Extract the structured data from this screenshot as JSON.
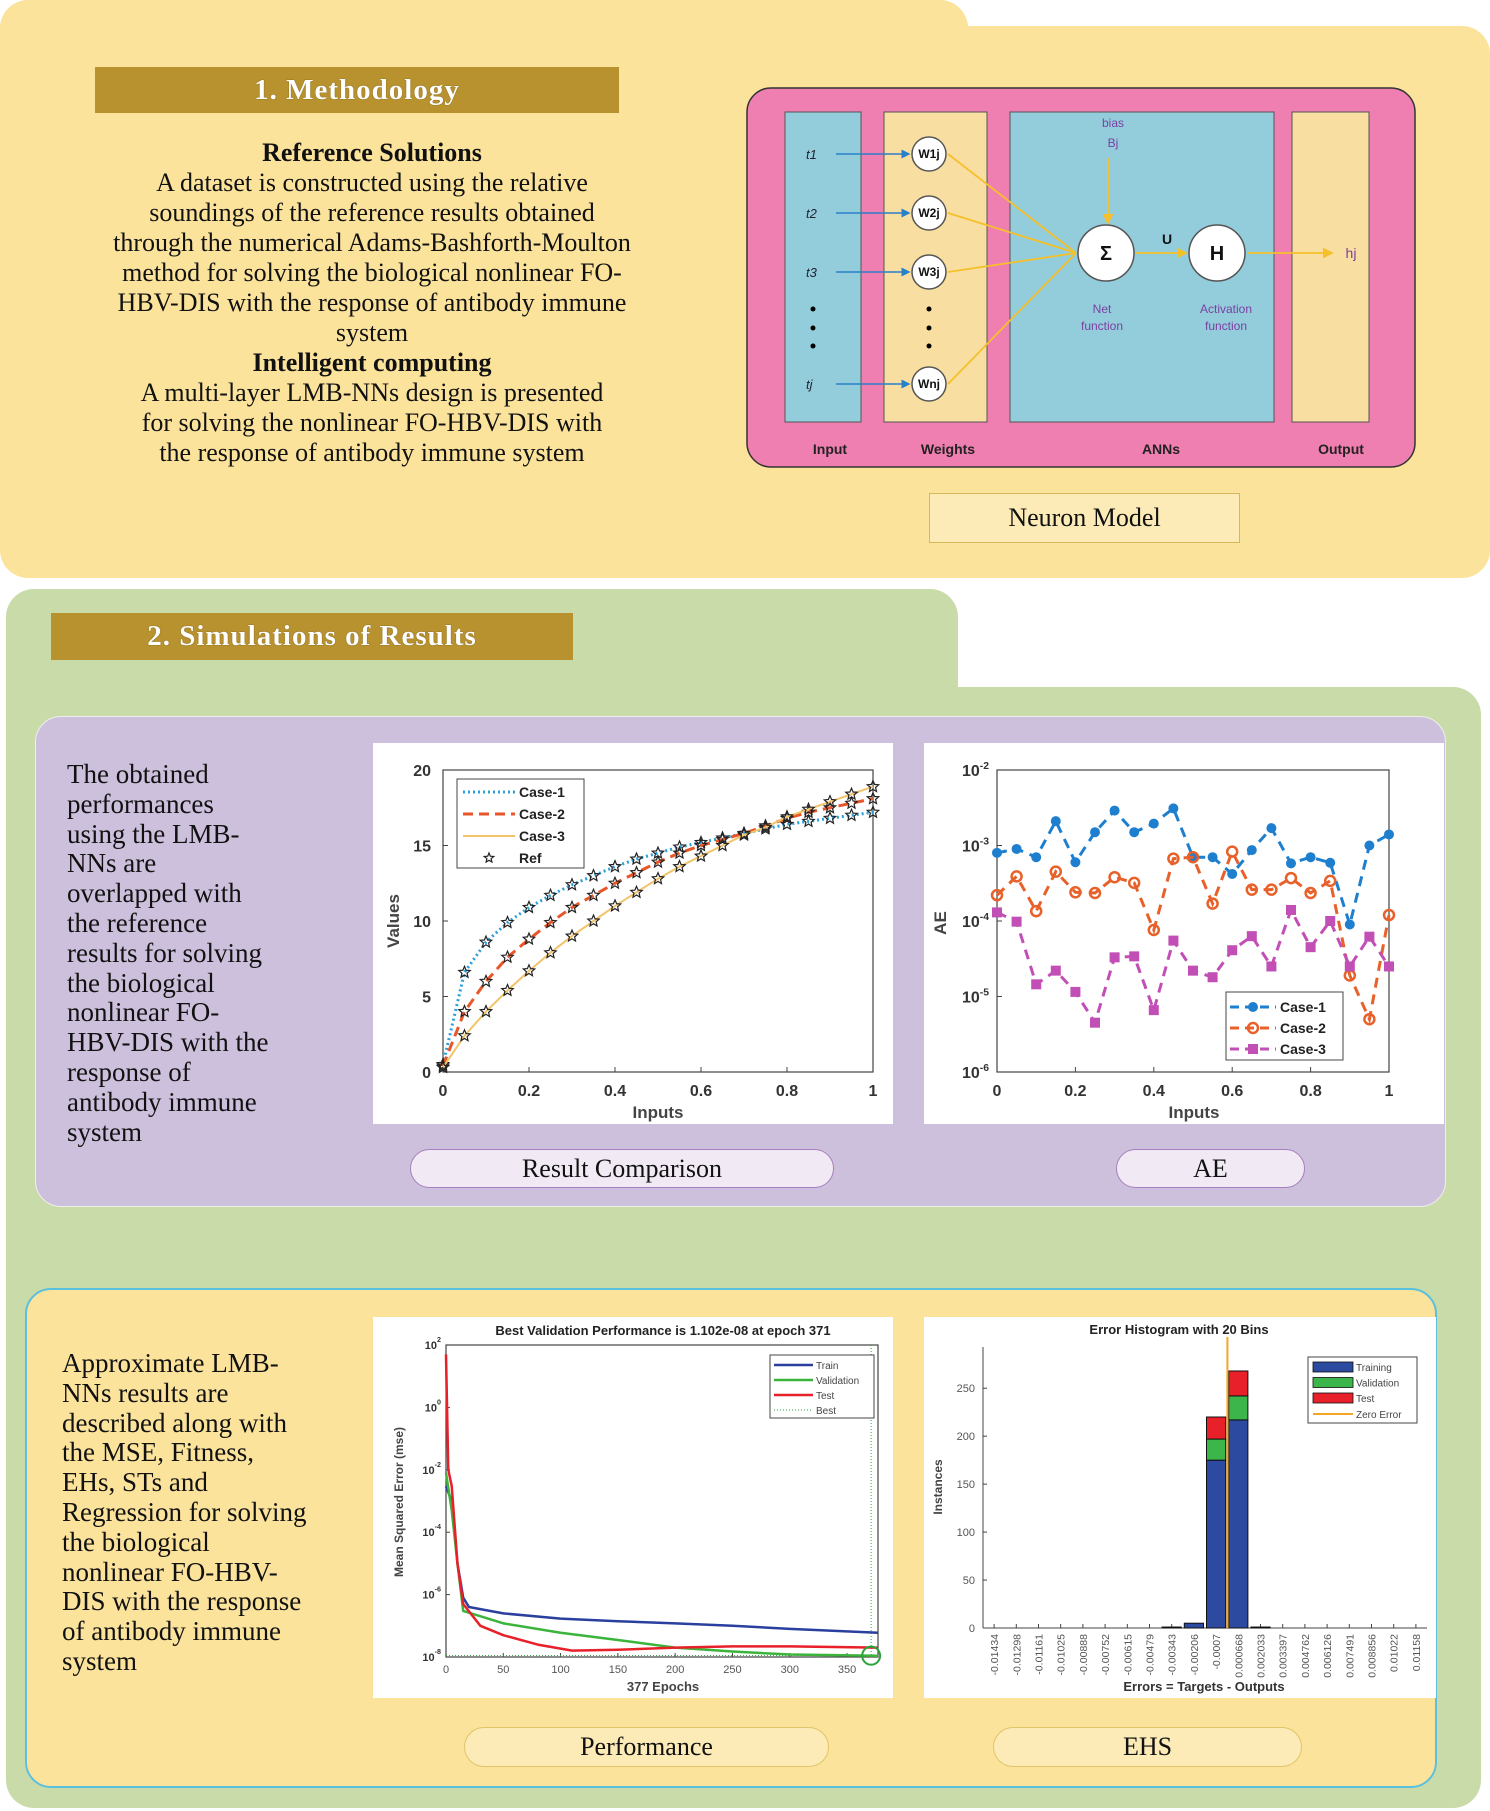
{
  "methodology": {
    "title": "1. Methodology",
    "ref_heading": "Reference Solutions",
    "ref_lines": [
      "A dataset is constructed using the relative",
      "soundings of the reference results obtained",
      "through the numerical Adams-Bashforth-Moulton",
      "method for solving the biological nonlinear FO-",
      "HBV-DIS with the response of antibody immune",
      "system"
    ],
    "ic_heading": "Intelligent computing",
    "ic_lines": [
      "A multi-layer LMB-NNs design is presented",
      "for solving the nonlinear FO-HBV-DIS with",
      "the response  of antibody immune system"
    ],
    "neuron": {
      "caption": "Neuron Model",
      "columns": {
        "input": "Input",
        "weights": "Weights",
        "anns": "ANNs",
        "output": "Output"
      },
      "inputs": [
        "t1",
        "t2",
        "t3",
        "tj"
      ],
      "weights": [
        "W1j",
        "W2j",
        "W3j",
        "Wnj"
      ],
      "bias": "bias",
      "bias_symbol": "Bj",
      "sum_symbol": "Σ",
      "act_symbol": "H",
      "u_label": "U",
      "output_symbol": "hj",
      "net_function": [
        "Net",
        "function"
      ],
      "activation_function": [
        "Activation",
        "function"
      ],
      "colors": {
        "frame": "#ef7fb0",
        "cyan": "#93cddc",
        "tan": "#f8dea0",
        "purple": "#7b3fa0",
        "yellow": "#f5c02a",
        "blue": "#2a7fc9"
      }
    }
  },
  "simulations": {
    "title": "2. Simulations of Results",
    "panel1_lines": [
      "The obtained",
      "performances",
      "using the LMB-",
      "NNs are",
      "overlapped with",
      "the reference",
      "results for solving",
      "the biological",
      "nonlinear FO-",
      "HBV-DIS with the",
      "response of",
      "antibody immune",
      "system"
    ],
    "panel2_lines": [
      "Approximate LMB-",
      "NNs results are",
      "described along with",
      "the MSE, Fitness,",
      "EHs, STs and",
      "Regression for solving",
      "the biological",
      "nonlinear FO-HBV-",
      "DIS with the response",
      "of antibody immune",
      "system"
    ],
    "captions": {
      "result": "Result Comparison",
      "ae": "AE",
      "performance": "Performance",
      "ehs": "EHS"
    }
  },
  "chart_data": [
    {
      "type": "line",
      "title": "",
      "xlabel": "Inputs",
      "ylabel": "Values",
      "xlim": [
        0,
        1
      ],
      "ylim": [
        0,
        20
      ],
      "xticks": [
        "0",
        "0.2",
        "0.4",
        "0.6",
        "0.8",
        "1"
      ],
      "yticks": [
        "0",
        "5",
        "10",
        "15",
        "20"
      ],
      "legend_position": "top-left",
      "x": [
        0,
        0.05,
        0.1,
        0.15,
        0.2,
        0.25,
        0.3,
        0.35,
        0.4,
        0.45,
        0.5,
        0.55,
        0.6,
        0.65,
        0.7,
        0.75,
        0.8,
        0.85,
        0.9,
        0.95,
        1
      ],
      "series": [
        {
          "name": "Case-1",
          "color": "#2a9fd8",
          "values": [
            0.5,
            6.6,
            8.6,
            9.9,
            10.9,
            11.7,
            12.4,
            13.0,
            13.6,
            14.1,
            14.5,
            14.9,
            15.2,
            15.5,
            15.8,
            16.1,
            16.4,
            16.6,
            16.8,
            17.0,
            17.2
          ]
        },
        {
          "name": "Case-2",
          "color": "#e8572a",
          "values": [
            0.4,
            4.0,
            6.0,
            7.6,
            8.8,
            9.9,
            10.9,
            11.7,
            12.5,
            13.2,
            13.9,
            14.5,
            15.0,
            15.4,
            15.8,
            16.3,
            16.8,
            17.2,
            17.5,
            17.8,
            18.1
          ]
        },
        {
          "name": "Case-3",
          "color": "#f2c46a",
          "values": [
            0.3,
            2.4,
            4.0,
            5.4,
            6.7,
            7.9,
            9.0,
            10.0,
            11.0,
            11.9,
            12.8,
            13.6,
            14.3,
            15.0,
            15.7,
            16.2,
            16.9,
            17.4,
            17.9,
            18.4,
            18.9
          ]
        }
      ],
      "ref_name": "Ref"
    },
    {
      "type": "line",
      "title": "",
      "xlabel": "Inputs",
      "ylabel": "AE",
      "yscale": "log",
      "xlim": [
        0,
        1
      ],
      "ylim": [
        1e-06,
        0.01
      ],
      "xticks": [
        "0",
        "0.2",
        "0.4",
        "0.6",
        "0.8",
        "1"
      ],
      "yticks": [
        {
          "base": "10",
          "exp": "-6"
        },
        {
          "base": "10",
          "exp": "-5"
        },
        {
          "base": "10",
          "exp": "-4"
        },
        {
          "base": "10",
          "exp": "-3"
        },
        {
          "base": "10",
          "exp": "-2"
        }
      ],
      "legend_position": "bottom-right",
      "x": [
        0,
        0.05,
        0.1,
        0.15,
        0.2,
        0.25,
        0.3,
        0.35,
        0.4,
        0.45,
        0.5,
        0.55,
        0.6,
        0.65,
        0.7,
        0.75,
        0.8,
        0.85,
        0.9,
        0.95,
        1
      ],
      "series": [
        {
          "name": "Case-1",
          "color": "#1f7fcf",
          "marker": "filled-circle",
          "values": [
            0.0008,
            0.0009,
            0.0007,
            0.0021,
            0.0006,
            0.0015,
            0.0029,
            0.0015,
            0.00195,
            0.0031,
            0.0007,
            0.0007,
            0.00042,
            0.00087,
            0.0017,
            0.00058,
            0.0007,
            0.00059,
            9e-05,
            0.001,
            0.0014
          ]
        },
        {
          "name": "Case-2",
          "color": "#e8612a",
          "marker": "open-circle",
          "values": [
            0.00022,
            0.00039,
            0.000135,
            0.00045,
            0.00024,
            0.000235,
            0.00038,
            0.00032,
            7.6e-05,
            0.00067,
            0.0007,
            0.00017,
            0.00083,
            0.00026,
            0.00026,
            0.00037,
            0.000235,
            0.00034,
            1.9e-05,
            5e-06,
            0.00012
          ]
        },
        {
          "name": "Case-3",
          "color": "#c24fb5",
          "marker": "square",
          "values": [
            0.00013,
            9.8e-05,
            1.45e-05,
            2.2e-05,
            1.15e-05,
            4.5e-06,
            3.3e-05,
            3.4e-05,
            6.6e-06,
            5.5e-05,
            2.2e-05,
            1.8e-05,
            4.1e-05,
            6.3e-05,
            2.5e-05,
            0.00014,
            4.5e-05,
            0.0001,
            2.5e-05,
            6.2e-05,
            2.5e-05
          ]
        }
      ]
    },
    {
      "type": "line",
      "title": "Best Validation Performance is 1.102e-08 at epoch 371",
      "xlabel": "377 Epochs",
      "ylabel": "Mean Squared Error  (mse)",
      "yscale": "log",
      "xlim": [
        0,
        377
      ],
      "ylim": [
        1e-08,
        100.0
      ],
      "xticks": [
        "0",
        "50",
        "100",
        "150",
        "200",
        "250",
        "300",
        "350"
      ],
      "yticks": [
        {
          "base": "10",
          "exp": "-8"
        },
        {
          "base": "10",
          "exp": "-6"
        },
        {
          "base": "10",
          "exp": "-4"
        },
        {
          "base": "10",
          "exp": "-2"
        },
        {
          "base": "10",
          "exp": "0"
        },
        {
          "base": "10",
          "exp": "2"
        }
      ],
      "legend_position": "top-right",
      "best": {
        "name": "Best",
        "epoch": 371,
        "value": 1.102e-08,
        "color": "#2aa33a"
      },
      "series": [
        {
          "name": "Train",
          "color": "#2b3f9e",
          "points": [
            [
              0,
              0.003
            ],
            [
              5,
              0.001
            ],
            [
              10,
              1e-05
            ],
            [
              15,
              8e-07
            ],
            [
              20,
              4e-07
            ],
            [
              50,
              2.5e-07
            ],
            [
              100,
              1.7e-07
            ],
            [
              150,
              1.4e-07
            ],
            [
              200,
              1.2e-07
            ],
            [
              250,
              1e-07
            ],
            [
              300,
              8e-08
            ],
            [
              377,
              6e-08
            ]
          ]
        },
        {
          "name": "Validation",
          "color": "#3cb43c",
          "points": [
            [
              0,
              0.008
            ],
            [
              5,
              0.0005
            ],
            [
              10,
              1e-05
            ],
            [
              15,
              3e-07
            ],
            [
              50,
              1.2e-07
            ],
            [
              100,
              6e-08
            ],
            [
              150,
              3.5e-08
            ],
            [
              200,
              2e-08
            ],
            [
              250,
              1.5e-08
            ],
            [
              300,
              1.2e-08
            ],
            [
              377,
              1.1e-08
            ]
          ]
        },
        {
          "name": "Test",
          "color": "#e8202a",
          "points": [
            [
              0,
              50
            ],
            [
              2,
              0.01
            ],
            [
              5,
              0.003
            ],
            [
              10,
              1e-05
            ],
            [
              15,
              5e-07
            ],
            [
              30,
              1e-07
            ],
            [
              50,
              5e-08
            ],
            [
              80,
              2.5e-08
            ],
            [
              110,
              1.6e-08
            ],
            [
              150,
              1.7e-08
            ],
            [
              200,
              2e-08
            ],
            [
              250,
              2.2e-08
            ],
            [
              300,
              2.2e-08
            ],
            [
              377,
              2e-08
            ]
          ]
        }
      ]
    },
    {
      "type": "bar",
      "title": "Error Histogram with 20 Bins",
      "xlabel": "Errors = Targets - Outputs",
      "ylabel": "Instances",
      "ylim": [
        0,
        293
      ],
      "yticks": [
        "0",
        "50",
        "100",
        "150",
        "200",
        "250"
      ],
      "legend_position": "top-right",
      "categories": [
        "-0.01434",
        "-0.01298",
        "-0.01161",
        "-0.01025",
        "-0.00888",
        "-0.00752",
        "-0.00615",
        "-0.00479",
        "-0.00343",
        "-0.00206",
        "-0.0007",
        "0.000668",
        "0.002033",
        "0.003397",
        "0.004762",
        "0.006126",
        "0.007491",
        "0.008856",
        "0.01022",
        "0.01158"
      ],
      "zero_error": {
        "name": "Zero Error",
        "color": "#f5a623"
      },
      "series": [
        {
          "name": "Training",
          "color": "#2b4aa0",
          "values": [
            0,
            0,
            0,
            0,
            0,
            0,
            0,
            0,
            1,
            5,
            175,
            217,
            1,
            0,
            0,
            0,
            0,
            0,
            0,
            0
          ]
        },
        {
          "name": "Validation",
          "color": "#3cb54a",
          "values": [
            0,
            0,
            0,
            0,
            0,
            0,
            0,
            0,
            0,
            0,
            22,
            25,
            0,
            0,
            0,
            0,
            0,
            0,
            0,
            0
          ]
        },
        {
          "name": "Test",
          "color": "#e8202a",
          "values": [
            0,
            0,
            0,
            0,
            0,
            0,
            0,
            0,
            0,
            0,
            23,
            26,
            0,
            0,
            0,
            0,
            0,
            0,
            0,
            0
          ]
        }
      ]
    }
  ]
}
